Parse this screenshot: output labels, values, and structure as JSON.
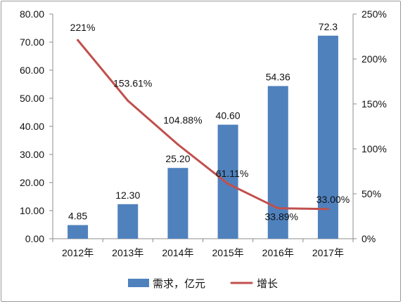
{
  "chart_data": {
    "type": "bar",
    "categories": [
      "2012年",
      "2013年",
      "2014年",
      "2015年",
      "2016年",
      "2017年"
    ],
    "series": [
      {
        "name": "需求，亿元",
        "type": "bar",
        "axis": "left",
        "values": [
          4.85,
          12.3,
          25.2,
          40.6,
          54.36,
          72.3
        ],
        "labels": [
          "4.85",
          "12.30",
          "25.20",
          "40.60",
          "54.36",
          "72.3"
        ],
        "color": "#4F81BD"
      },
      {
        "name": "增长",
        "type": "line",
        "axis": "right",
        "values": [
          221,
          153.61,
          104.88,
          61.11,
          33.89,
          33.0
        ],
        "labels": [
          "221%",
          "153.61%",
          "104.88%",
          "61.11%",
          "33.89%",
          "33.00%"
        ],
        "color": "#C0504D"
      }
    ],
    "left_axis": {
      "ylim": [
        0,
        80
      ],
      "ticks": [
        "0.00",
        "10.00",
        "20.00",
        "30.00",
        "40.00",
        "50.00",
        "60.00",
        "70.00",
        "80.00"
      ]
    },
    "right_axis": {
      "ylim": [
        0,
        250
      ],
      "ticks": [
        "0%",
        "50%",
        "100%",
        "150%",
        "200%",
        "250%"
      ]
    },
    "legend": {
      "position": "bottom"
    },
    "grid": false,
    "title": "",
    "xlabel": "",
    "ylabel": ""
  }
}
